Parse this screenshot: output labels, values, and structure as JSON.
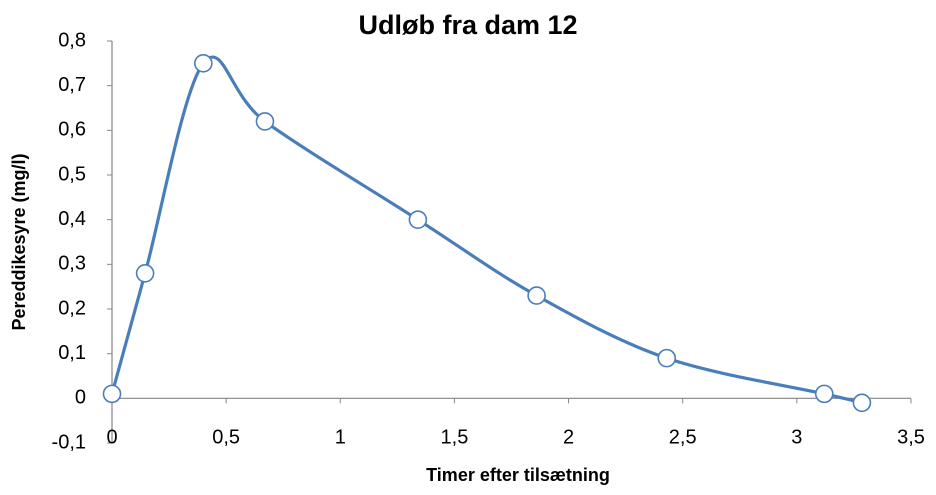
{
  "chart_data": {
    "type": "scatter",
    "title": "Udløb fra dam 12",
    "x_label": "Timer efter tilsætning",
    "y_label": "Pereddikesyre (mg/l)",
    "series": [
      {
        "name": "Udløb fra dam 12",
        "color": "#4a7ebb",
        "x": [
          0,
          0.145,
          0.4,
          0.67,
          1.34,
          1.86,
          2.43,
          3.12,
          3.285
        ],
        "values": [
          0.01,
          0.28,
          0.75,
          0.62,
          0.4,
          0.23,
          0.09,
          0.01,
          -0.01
        ]
      }
    ],
    "xlim": [
      0,
      3.5
    ],
    "xticks": [
      0,
      {
        "value": 0.5,
        "label": "0,5"
      },
      1,
      {
        "value": 1.5,
        "label": "1,5"
      },
      2,
      {
        "value": 2.5,
        "label": "2,5"
      },
      3,
      {
        "value": 3.5,
        "label": "3,5"
      }
    ],
    "ylim": [
      -0.1,
      0.8
    ],
    "yticks": [
      {
        "value": -0.1,
        "label": "-0,1"
      },
      0,
      {
        "value": 0.1,
        "label": "0,1"
      },
      {
        "value": 0.2,
        "label": "0,2"
      },
      {
        "value": 0.3,
        "label": "0,3"
      },
      {
        "value": 0.4,
        "label": "0,4"
      },
      {
        "value": 0.5,
        "label": "0,5"
      },
      {
        "value": 0.6,
        "label": "0,6"
      },
      {
        "value": 0.7,
        "label": "0,7"
      },
      {
        "value": 0.8,
        "label": "0,8"
      }
    ],
    "grid": false,
    "smooth": true
  }
}
